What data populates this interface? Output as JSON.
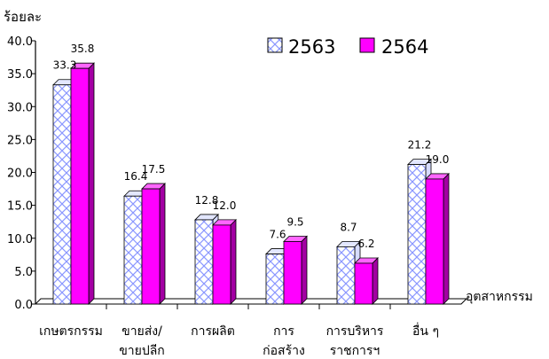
{
  "chart_data": {
    "type": "bar",
    "title": "",
    "ylabel": "ร้อยละ",
    "xlabel": "อุตสาหกรรม",
    "ylim": [
      0,
      40
    ],
    "yticks": [
      "0.0",
      "5.0",
      "10.0",
      "15.0",
      "20.0",
      "25.0",
      "30.0",
      "35.0",
      "40.0"
    ],
    "categories": [
      [
        "เกษตรกรรม"
      ],
      [
        "ขายส่ง/",
        "ขายปลีก"
      ],
      [
        "การผลิต"
      ],
      [
        "การ",
        "ก่อสร้าง"
      ],
      [
        "การบริหาร",
        "ราชการฯ"
      ],
      [
        "อื่น ๆ"
      ]
    ],
    "series": [
      {
        "name": "2563",
        "values": [
          33.3,
          16.4,
          12.8,
          7.6,
          8.7,
          21.2
        ],
        "labels": [
          "33.3",
          "16.4",
          "12.8",
          "7.6",
          "8.7",
          "21.2"
        ],
        "pattern": "crosshatch",
        "color": "#9aa8ff"
      },
      {
        "name": "2564",
        "values": [
          35.8,
          17.5,
          12.0,
          9.5,
          6.2,
          19.0
        ],
        "labels": [
          "35.8",
          "17.5",
          "12.0",
          "9.5",
          "6.2",
          "19.0"
        ],
        "pattern": "solid",
        "color": "#ff00ff"
      }
    ],
    "legend_position": "top-right",
    "grid": false,
    "style": "3d-bar"
  }
}
